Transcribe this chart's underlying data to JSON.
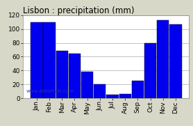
{
  "title": "Lisbon : precipitation (mm)",
  "months": [
    "Jan",
    "Feb",
    "Mar",
    "Apr",
    "May",
    "Jun",
    "Jul",
    "Aug",
    "Sep",
    "Oct",
    "Nov",
    "Dec"
  ],
  "values": [
    110,
    110,
    68,
    64,
    38,
    20,
    5,
    6,
    25,
    80,
    113,
    107
  ],
  "bar_color": "#0000EE",
  "bar_edge_color": "#000000",
  "ylim": [
    0,
    120
  ],
  "yticks": [
    0,
    20,
    40,
    60,
    80,
    100,
    120
  ],
  "background_color": "#d8d8c8",
  "plot_bg_color": "#ffffff",
  "title_fontsize": 8.5,
  "tick_fontsize": 6.5,
  "watermark": "www.allmetsat.com",
  "watermark_color": "#3333aa",
  "bar_width": 0.95
}
